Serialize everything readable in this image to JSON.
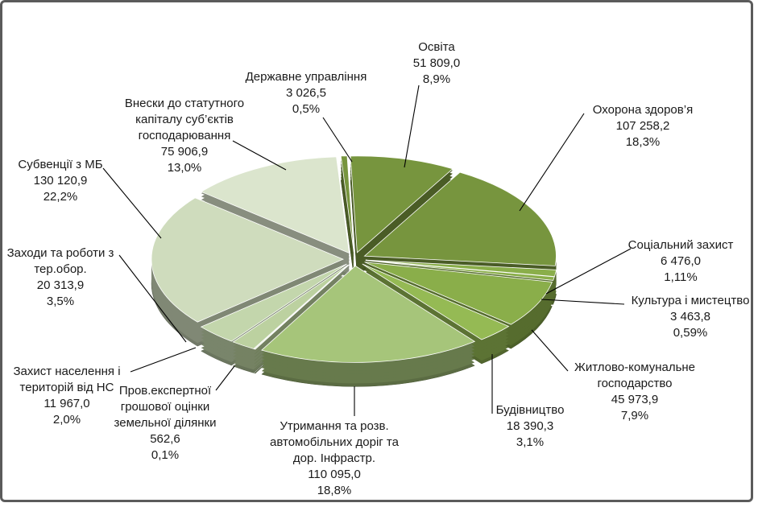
{
  "chart_data": {
    "type": "pie",
    "style": "3d-exploded",
    "unit_note": "",
    "slices": [
      {
        "name": "Освіта",
        "value": "51 809,0",
        "percent": "8,9%",
        "v": 51809.0,
        "color": "#77953e"
      },
      {
        "name": "Охорона здоров’я",
        "value": "107 258,2",
        "percent": "18,3%",
        "v": 107258.2,
        "color": "#77953e"
      },
      {
        "name": "Соціальний захист",
        "value": "6 476,0",
        "percent": "1,11%",
        "v": 6476.0,
        "color": "#8aae4a"
      },
      {
        "name": "Культура і мистецтво",
        "value": "3 463,8",
        "percent": "0,59%",
        "v": 3463.8,
        "color": "#8aae4a"
      },
      {
        "name": "Житлово-комунальне господарство",
        "value": "45 973,9",
        "percent": "7,9%",
        "v": 45973.9,
        "color": "#8aae4a"
      },
      {
        "name": "Будівництво",
        "value": "18 390,3",
        "percent": "3,1%",
        "v": 18390.3,
        "color": "#95ba54"
      },
      {
        "name": "Утримання та розв. автомобільних доріг та дор. Інфрастр.",
        "value": "110 095,0",
        "percent": "18,8%",
        "v": 110095.0,
        "color": "#a6c57a"
      },
      {
        "name": "Пров.експертної грошової оцінки земельної ділянки",
        "value": "562,6",
        "percent": "0,1%",
        "v": 562.6,
        "color": "#b3cc93"
      },
      {
        "name": "Захист населення і територій від НС",
        "value": "11 967,0",
        "percent": "2,0%",
        "v": 11967.0,
        "color": "#bcd1a0"
      },
      {
        "name": "Заходи та роботи з тер.обор.",
        "value": "20 313,9",
        "percent": "3,5%",
        "v": 20313.9,
        "color": "#c3d6ac"
      },
      {
        "name": "Субвенції з МБ",
        "value": "130 120,9",
        "percent": "22,2%",
        "v": 130120.9,
        "color": "#cfdcbd"
      },
      {
        "name": "Внески до статутного капіталу суб’єктів господарювання",
        "value": "75 906,9",
        "percent": "13,0%",
        "v": 75906.9,
        "color": "#dbe5cd"
      },
      {
        "name": "Державне управління",
        "value": "3 026,5",
        "percent": "0,5%",
        "v": 3026.5,
        "color": "#77953e"
      }
    ],
    "labels": [
      {
        "lines": [
          "Освіта",
          "51 809,0",
          "8,9%"
        ]
      },
      {
        "lines": [
          "Охорона здоров’я",
          "107 258,2",
          "18,3%"
        ]
      },
      {
        "lines": [
          "Соціальний захист",
          "6 476,0",
          "1,11%"
        ]
      },
      {
        "lines": [
          "Культура і мистецтво",
          "3 463,8",
          "0,59%"
        ]
      },
      {
        "lines": [
          "Житлово-комунальне",
          "господарство",
          "45 973,9",
          "7,9%"
        ]
      },
      {
        "lines": [
          "Будівництво",
          "18 390,3",
          "3,1%"
        ]
      },
      {
        "lines": [
          "Утримання та розв.",
          "автомобільних доріг та",
          "дор. Інфрастр.",
          "110 095,0",
          "18,8%"
        ]
      },
      {
        "lines": [
          "Пров.експертної",
          "грошової  оцінки",
          "земельної ділянки",
          "562,6",
          "0,1%"
        ]
      },
      {
        "lines": [
          "Захист населення і",
          "територій від НС",
          "11 967,0",
          "2,0%"
        ]
      },
      {
        "lines": [
          "Заходи та роботи з",
          "тер.обор.",
          "20 313,9",
          "3,5%"
        ]
      },
      {
        "lines": [
          "Субвенції з МБ",
          "130 120,9",
          "22,2%"
        ]
      },
      {
        "lines": [
          "Внески до статутного",
          "капіталу суб’єктів",
          "господарювання",
          "75 906,9",
          "13,0%"
        ]
      },
      {
        "lines": [
          "Державне управління",
          "3 026,5",
          "0,5%"
        ]
      }
    ]
  }
}
